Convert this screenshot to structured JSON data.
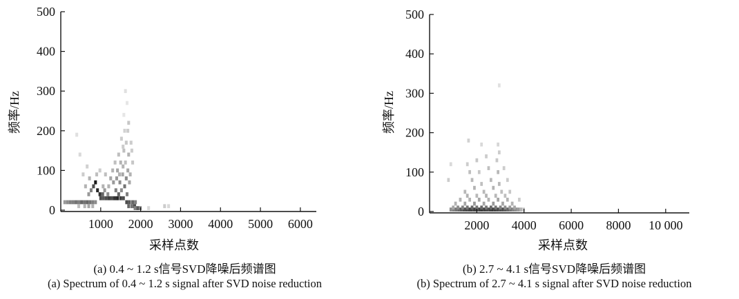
{
  "chart_data": [
    {
      "type": "heatmap",
      "title": "(a) 0.4 ~ 1.2 s信号SVD降噪后频谱图",
      "subtitle": "(a) Spectrum of 0.4 ~ 1.2 s signal after SVD noise reduction",
      "xlabel": "采样点数",
      "ylabel": "频率/Hz",
      "xlim": [
        0,
        6400
      ],
      "ylim": [
        0,
        500
      ],
      "xticks": [
        1000,
        2000,
        3000,
        4000,
        5000,
        6000
      ],
      "xtick_labels": [
        "1000",
        "2000",
        "3000",
        "4000",
        "5000",
        "6000"
      ],
      "yticks": [
        0,
        100,
        200,
        300,
        400,
        500
      ],
      "ytick_labels": [
        "0",
        "100",
        "200",
        "300",
        "400",
        "500"
      ],
      "grid": false,
      "colormap": "white-to-black",
      "cell_width": 70,
      "cell_height": 10,
      "cells": [
        [
          100,
          20,
          0.4
        ],
        [
          170,
          20,
          0.45
        ],
        [
          240,
          20,
          0.5
        ],
        [
          310,
          20,
          0.5
        ],
        [
          380,
          20,
          0.55
        ],
        [
          450,
          20,
          0.5
        ],
        [
          520,
          20,
          0.6
        ],
        [
          590,
          20,
          0.55
        ],
        [
          660,
          20,
          0.6
        ],
        [
          730,
          20,
          0.55
        ],
        [
          800,
          20,
          0.5
        ],
        [
          870,
          20,
          0.45
        ],
        [
          450,
          10,
          0.25
        ],
        [
          600,
          10,
          0.3
        ],
        [
          700,
          10,
          0.35
        ],
        [
          800,
          10,
          0.3
        ],
        [
          700,
          40,
          0.4
        ],
        [
          760,
          50,
          0.5
        ],
        [
          820,
          60,
          0.7
        ],
        [
          870,
          70,
          0.9
        ],
        [
          920,
          50,
          0.85
        ],
        [
          980,
          40,
          0.8
        ],
        [
          1050,
          40,
          0.6
        ],
        [
          1000,
          30,
          0.7
        ],
        [
          1070,
          30,
          0.65
        ],
        [
          1140,
          30,
          0.7
        ],
        [
          1210,
          30,
          0.75
        ],
        [
          1280,
          30,
          0.7
        ],
        [
          1350,
          30,
          0.8
        ],
        [
          1420,
          30,
          0.85
        ],
        [
          1500,
          30,
          0.75
        ],
        [
          1570,
          30,
          0.7
        ],
        [
          1650,
          20,
          0.7
        ],
        [
          1720,
          20,
          0.65
        ],
        [
          1800,
          20,
          0.6
        ],
        [
          1870,
          20,
          0.5
        ],
        [
          1700,
          10,
          0.6
        ],
        [
          1780,
          10,
          0.55
        ],
        [
          1850,
          10,
          0.7
        ],
        [
          1920,
          0,
          0.65
        ],
        [
          1990,
          0,
          0.5
        ],
        [
          1860,
          0,
          0.5
        ],
        [
          1450,
          40,
          0.6
        ],
        [
          1380,
          50,
          0.5
        ],
        [
          1520,
          50,
          0.45
        ],
        [
          1600,
          60,
          0.55
        ],
        [
          1660,
          40,
          0.5
        ],
        [
          1320,
          70,
          0.4
        ],
        [
          1250,
          80,
          0.35
        ],
        [
          1400,
          80,
          0.4
        ],
        [
          1480,
          70,
          0.45
        ],
        [
          1550,
          90,
          0.35
        ],
        [
          1640,
          80,
          0.45
        ],
        [
          1720,
          70,
          0.35
        ],
        [
          1200,
          60,
          0.3
        ],
        [
          1100,
          50,
          0.4
        ],
        [
          1180,
          40,
          0.45
        ],
        [
          1060,
          60,
          0.3
        ],
        [
          1300,
          100,
          0.3
        ],
        [
          1420,
          100,
          0.35
        ],
        [
          1560,
          110,
          0.3
        ],
        [
          1680,
          100,
          0.35
        ],
        [
          1740,
          90,
          0.3
        ],
        [
          1620,
          120,
          0.25
        ],
        [
          1500,
          120,
          0.3
        ],
        [
          1360,
          120,
          0.25
        ],
        [
          1450,
          140,
          0.25
        ],
        [
          1580,
          150,
          0.25
        ],
        [
          1700,
          140,
          0.3
        ],
        [
          1760,
          170,
          0.2
        ],
        [
          1640,
          170,
          0.22
        ],
        [
          1520,
          180,
          0.2
        ],
        [
          1600,
          200,
          0.18
        ],
        [
          1700,
          220,
          0.22
        ],
        [
          1680,
          200,
          0.2
        ],
        [
          1560,
          160,
          0.2
        ],
        [
          1470,
          90,
          0.3
        ],
        [
          1800,
          120,
          0.22
        ],
        [
          1780,
          150,
          0.2
        ],
        [
          1620,
          300,
          0.12
        ],
        [
          1660,
          270,
          0.1
        ],
        [
          1580,
          240,
          0.1
        ],
        [
          620,
          60,
          0.3
        ],
        [
          560,
          90,
          0.2
        ],
        [
          480,
          140,
          0.15
        ],
        [
          400,
          190,
          0.12
        ],
        [
          660,
          110,
          0.18
        ],
        [
          720,
          80,
          0.3
        ],
        [
          900,
          90,
          0.25
        ],
        [
          980,
          100,
          0.2
        ],
        [
          1120,
          90,
          0.25
        ],
        [
          2600,
          10,
          0.2
        ],
        [
          2700,
          10,
          0.15
        ],
        [
          2200,
          0,
          0.15
        ]
      ]
    },
    {
      "type": "heatmap",
      "title": "(b) 2.7 ~ 4.1 s信号SVD降噪后频谱图",
      "subtitle": "(b) Spectrum of 2.7 ~ 4.1 s signal after SVD noise reduction",
      "xlabel": "采样点数",
      "ylabel": "频率/Hz",
      "xlim": [
        0,
        11000
      ],
      "ylim": [
        0,
        500
      ],
      "xticks": [
        2000,
        4000,
        6000,
        8000,
        10000
      ],
      "xtick_labels": [
        "2000",
        "4000",
        "6000",
        "8000",
        "10 000"
      ],
      "yticks": [
        0,
        100,
        200,
        300,
        400,
        500
      ],
      "ytick_labels": [
        "0",
        "100",
        "200",
        "300",
        "400",
        "500"
      ],
      "grid": false,
      "colormap": "white-to-black",
      "cell_width": 110,
      "cell_height": 10,
      "cells": [
        [
          900,
          0,
          0.45
        ],
        [
          1010,
          0,
          0.5
        ],
        [
          1120,
          0,
          0.55
        ],
        [
          1230,
          0,
          0.6
        ],
        [
          1340,
          0,
          0.65
        ],
        [
          1450,
          0,
          0.7
        ],
        [
          1560,
          0,
          0.72
        ],
        [
          1670,
          0,
          0.75
        ],
        [
          1780,
          0,
          0.75
        ],
        [
          1890,
          0,
          0.75
        ],
        [
          2000,
          0,
          0.72
        ],
        [
          2110,
          0,
          0.75
        ],
        [
          2220,
          0,
          0.78
        ],
        [
          2330,
          0,
          0.75
        ],
        [
          2440,
          0,
          0.72
        ],
        [
          2550,
          0,
          0.75
        ],
        [
          2660,
          0,
          0.78
        ],
        [
          2770,
          0,
          0.75
        ],
        [
          2880,
          0,
          0.72
        ],
        [
          2990,
          0,
          0.7
        ],
        [
          3100,
          0,
          0.7
        ],
        [
          3210,
          0,
          0.65
        ],
        [
          3320,
          0,
          0.6
        ],
        [
          3430,
          0,
          0.55
        ],
        [
          3540,
          0,
          0.5
        ],
        [
          3650,
          0,
          0.45
        ],
        [
          3760,
          0,
          0.4
        ],
        [
          3870,
          0,
          0.3
        ],
        [
          3980,
          0,
          0.2
        ],
        [
          1000,
          10,
          0.35
        ],
        [
          1200,
          10,
          0.45
        ],
        [
          1400,
          10,
          0.5
        ],
        [
          1600,
          10,
          0.55
        ],
        [
          1800,
          10,
          0.6
        ],
        [
          2000,
          10,
          0.55
        ],
        [
          2200,
          10,
          0.6
        ],
        [
          2400,
          10,
          0.55
        ],
        [
          2600,
          10,
          0.6
        ],
        [
          2800,
          10,
          0.55
        ],
        [
          3000,
          10,
          0.5
        ],
        [
          3200,
          10,
          0.45
        ],
        [
          3400,
          10,
          0.4
        ],
        [
          3600,
          10,
          0.35
        ],
        [
          1100,
          20,
          0.3
        ],
        [
          1500,
          20,
          0.35
        ],
        [
          1900,
          20,
          0.4
        ],
        [
          2300,
          20,
          0.35
        ],
        [
          2700,
          20,
          0.4
        ],
        [
          3100,
          20,
          0.35
        ],
        [
          3500,
          20,
          0.3
        ],
        [
          1300,
          30,
          0.3
        ],
        [
          1700,
          30,
          0.3
        ],
        [
          2100,
          30,
          0.35
        ],
        [
          2500,
          30,
          0.3
        ],
        [
          2900,
          30,
          0.35
        ],
        [
          3300,
          30,
          0.3
        ],
        [
          1600,
          40,
          0.3
        ],
        [
          2000,
          40,
          0.28
        ],
        [
          2400,
          40,
          0.3
        ],
        [
          2800,
          40,
          0.28
        ],
        [
          3200,
          40,
          0.25
        ],
        [
          1500,
          50,
          0.28
        ],
        [
          1900,
          60,
          0.3
        ],
        [
          2300,
          50,
          0.28
        ],
        [
          2700,
          60,
          0.3
        ],
        [
          3050,
          50,
          0.25
        ],
        [
          3400,
          50,
          0.22
        ],
        [
          1800,
          80,
          0.28
        ],
        [
          2200,
          70,
          0.25
        ],
        [
          2600,
          80,
          0.28
        ],
        [
          2950,
          70,
          0.28
        ],
        [
          3300,
          80,
          0.2
        ],
        [
          1700,
          100,
          0.25
        ],
        [
          2100,
          100,
          0.22
        ],
        [
          2500,
          110,
          0.25
        ],
        [
          2900,
          100,
          0.28
        ],
        [
          3150,
          110,
          0.2
        ],
        [
          1600,
          120,
          0.2
        ],
        [
          2000,
          130,
          0.22
        ],
        [
          2400,
          140,
          0.2
        ],
        [
          2850,
          130,
          0.22
        ],
        [
          2950,
          150,
          0.2
        ],
        [
          1650,
          180,
          0.18
        ],
        [
          2200,
          170,
          0.15
        ],
        [
          2900,
          170,
          0.16
        ],
        [
          2950,
          320,
          0.12
        ],
        [
          800,
          80,
          0.2
        ],
        [
          900,
          120,
          0.15
        ],
        [
          3800,
          30,
          0.2
        ]
      ]
    }
  ]
}
